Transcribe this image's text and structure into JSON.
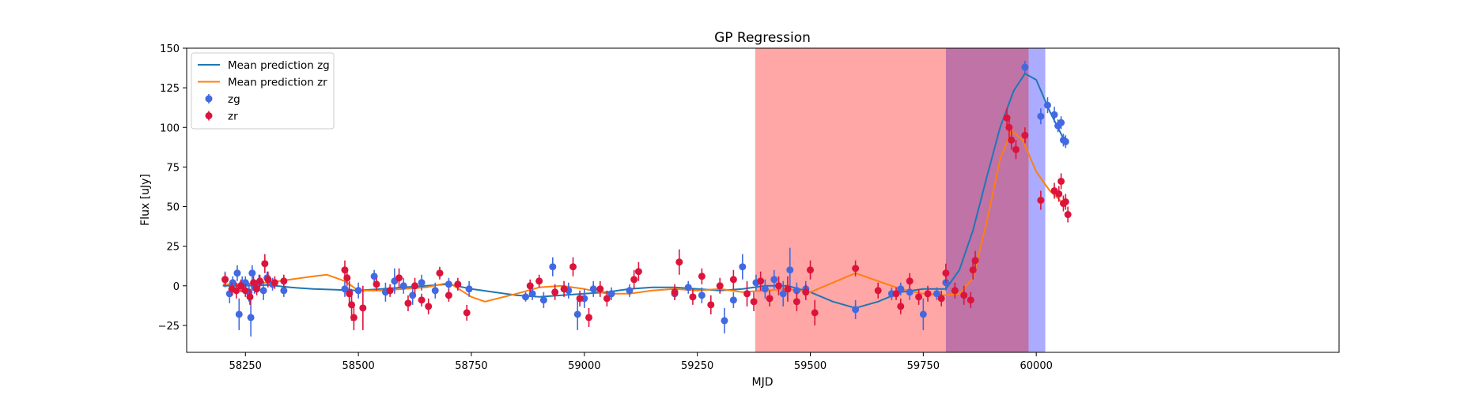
{
  "chart_data": {
    "type": "scatter",
    "title": "GP Regression",
    "xlabel": "MJD",
    "ylabel": "Flux [uJy]",
    "xlim": [
      58120,
      60670
    ],
    "ylim": [
      -42,
      150
    ],
    "xticks": [
      58250,
      58500,
      58750,
      59000,
      59250,
      59500,
      59750,
      60000
    ],
    "yticks": [
      -25,
      0,
      25,
      50,
      75,
      100,
      125,
      150
    ],
    "legend_placement": "upper-left",
    "shaded_regions": [
      {
        "x": [
          59378,
          59800
        ],
        "color": "#ff0000",
        "opacity": 0.35
      },
      {
        "x": [
          59800,
          59983
        ],
        "color": "#8b005e",
        "opacity": 0.55
      },
      {
        "x": [
          59983,
          60020
        ],
        "color": "#0000ff",
        "opacity": 0.33
      }
    ],
    "lines": [
      {
        "name": "Mean prediction zg",
        "legend": "Mean prediction zg",
        "color": "#1f77b4",
        "x": [
          58200,
          58250,
          58300,
          58350,
          58400,
          58450,
          58500,
          58550,
          58600,
          58650,
          58700,
          58750,
          58800,
          58850,
          58900,
          58950,
          59000,
          59050,
          59100,
          59150,
          59200,
          59250,
          59300,
          59350,
          59400,
          59450,
          59500,
          59550,
          59600,
          59650,
          59700,
          59750,
          59800,
          59830,
          59860,
          59890,
          59920,
          59950,
          59975,
          60000,
          60030,
          60060
        ],
        "y": [
          0,
          0,
          0.5,
          -1,
          -2,
          -2.5,
          -3,
          -2,
          -1,
          0,
          1,
          -2,
          -4,
          -6,
          -7,
          -6,
          -5,
          -4,
          -2,
          -1,
          -1,
          -2,
          -3,
          -2,
          0,
          0,
          -4,
          -10,
          -14,
          -10,
          -4,
          -2,
          -2,
          10,
          35,
          68,
          100,
          123,
          134,
          130,
          110,
          93
        ]
      },
      {
        "name": "Mean prediction zr",
        "legend": "Mean prediction zr",
        "color": "#ff7f0e",
        "x": [
          58200,
          58250,
          58300,
          58350,
          58400,
          58430,
          58470,
          58500,
          58550,
          58600,
          58650,
          58700,
          58750,
          58780,
          58850,
          58900,
          58950,
          59000,
          59050,
          59100,
          59150,
          59200,
          59250,
          59300,
          59350,
          59400,
          59450,
          59500,
          59550,
          59600,
          59650,
          59700,
          59750,
          59800,
          59830,
          59860,
          59890,
          59920,
          59945,
          59970,
          60000,
          60030,
          60060
        ],
        "y": [
          1,
          1,
          2,
          4,
          6,
          7,
          3,
          -3,
          -3,
          -2,
          -1,
          2,
          -7,
          -10,
          -5,
          -1,
          0,
          -2,
          -5,
          -5,
          -3,
          -2,
          -3,
          -2,
          -4,
          -3,
          -2,
          -4,
          2,
          8,
          3,
          -2,
          -5,
          -6,
          -5,
          5,
          40,
          80,
          98,
          92,
          72,
          60,
          52
        ]
      }
    ],
    "series": [
      {
        "name": "zg",
        "legend": "zg",
        "color": "#4169e1",
        "points": [
          [
            58205,
            4,
            5
          ],
          [
            58215,
            -5,
            6
          ],
          [
            58222,
            2,
            4
          ],
          [
            58232,
            8,
            5
          ],
          [
            58236,
            -18,
            10
          ],
          [
            58243,
            1,
            5
          ],
          [
            58250,
            2,
            4
          ],
          [
            58258,
            -4,
            6
          ],
          [
            58262,
            -20,
            12
          ],
          [
            58265,
            8,
            5
          ],
          [
            58270,
            -1,
            4
          ],
          [
            58280,
            2,
            5
          ],
          [
            58290,
            -3,
            6
          ],
          [
            58298,
            5,
            4
          ],
          [
            58310,
            1,
            4
          ],
          [
            58335,
            -3,
            4
          ],
          [
            58470,
            -2,
            5
          ],
          [
            58480,
            -4,
            6
          ],
          [
            58500,
            -3,
            5
          ],
          [
            58535,
            6,
            4
          ],
          [
            58560,
            -4,
            6
          ],
          [
            58580,
            3,
            8
          ],
          [
            58600,
            0,
            5
          ],
          [
            58620,
            -6,
            6
          ],
          [
            58640,
            2,
            5
          ],
          [
            58670,
            -3,
            5
          ],
          [
            58700,
            1,
            4
          ],
          [
            58745,
            -2,
            5
          ],
          [
            58870,
            -7,
            3
          ],
          [
            58885,
            -5,
            4
          ],
          [
            58910,
            -9,
            5
          ],
          [
            58930,
            12,
            6
          ],
          [
            58965,
            -3,
            5
          ],
          [
            58985,
            -18,
            10
          ],
          [
            59000,
            -8,
            6
          ],
          [
            59020,
            -2,
            5
          ],
          [
            59060,
            -5,
            4
          ],
          [
            59100,
            -3,
            4
          ],
          [
            59200,
            -5,
            4
          ],
          [
            59230,
            -1,
            4
          ],
          [
            59260,
            -6,
            5
          ],
          [
            59310,
            -22,
            8
          ],
          [
            59330,
            -9,
            5
          ],
          [
            59350,
            12,
            8
          ],
          [
            59380,
            2,
            5
          ],
          [
            59400,
            -2,
            6
          ],
          [
            59420,
            4,
            6
          ],
          [
            59440,
            -5,
            8
          ],
          [
            59455,
            10,
            14
          ],
          [
            59470,
            -3,
            5
          ],
          [
            59490,
            -2,
            5
          ],
          [
            59600,
            -15,
            6
          ],
          [
            59680,
            -5,
            4
          ],
          [
            59700,
            -2,
            4
          ],
          [
            59720,
            -4,
            5
          ],
          [
            59750,
            -18,
            10
          ],
          [
            59780,
            -5,
            4
          ],
          [
            59800,
            2,
            5
          ],
          [
            59975,
            138,
            4
          ],
          [
            60010,
            107,
            5
          ],
          [
            60025,
            114,
            5
          ],
          [
            60040,
            108,
            5
          ],
          [
            60048,
            101,
            4
          ],
          [
            60055,
            103,
            4
          ],
          [
            60060,
            92,
            4
          ],
          [
            60065,
            91,
            4
          ]
        ]
      },
      {
        "name": "zr",
        "legend": "zr",
        "color": "#dc143c",
        "points": [
          [
            58205,
            4,
            4
          ],
          [
            58220,
            -2,
            4
          ],
          [
            58230,
            -3,
            5
          ],
          [
            58240,
            0,
            4
          ],
          [
            58250,
            -3,
            4
          ],
          [
            58260,
            -7,
            5
          ],
          [
            58268,
            2,
            4
          ],
          [
            58275,
            -2,
            4
          ],
          [
            58282,
            3,
            4
          ],
          [
            58293,
            14,
            6
          ],
          [
            58300,
            4,
            5
          ],
          [
            58315,
            2,
            4
          ],
          [
            58335,
            3,
            4
          ],
          [
            58470,
            10,
            6
          ],
          [
            58475,
            5,
            5
          ],
          [
            58480,
            -5,
            8
          ],
          [
            58485,
            -12,
            10
          ],
          [
            58490,
            -20,
            8
          ],
          [
            58510,
            -14,
            14
          ],
          [
            58540,
            1,
            4
          ],
          [
            58570,
            -3,
            4
          ],
          [
            58590,
            5,
            6
          ],
          [
            58610,
            -11,
            5
          ],
          [
            58625,
            0,
            5
          ],
          [
            58640,
            -9,
            4
          ],
          [
            58655,
            -13,
            5
          ],
          [
            58680,
            8,
            4
          ],
          [
            58700,
            -6,
            4
          ],
          [
            58720,
            1,
            4
          ],
          [
            58740,
            -17,
            5
          ],
          [
            58880,
            0,
            4
          ],
          [
            58900,
            3,
            4
          ],
          [
            58935,
            -4,
            5
          ],
          [
            58955,
            -2,
            5
          ],
          [
            58975,
            12,
            6
          ],
          [
            58990,
            -8,
            5
          ],
          [
            59010,
            -20,
            6
          ],
          [
            59035,
            -2,
            5
          ],
          [
            59050,
            -8,
            5
          ],
          [
            59110,
            4,
            6
          ],
          [
            59120,
            9,
            6
          ],
          [
            59200,
            -4,
            5
          ],
          [
            59210,
            15,
            8
          ],
          [
            59240,
            -7,
            5
          ],
          [
            59260,
            6,
            5
          ],
          [
            59280,
            -12,
            6
          ],
          [
            59300,
            0,
            5
          ],
          [
            59330,
            4,
            6
          ],
          [
            59360,
            -5,
            8
          ],
          [
            59375,
            -10,
            6
          ],
          [
            59390,
            3,
            6
          ],
          [
            59410,
            -8,
            5
          ],
          [
            59430,
            0,
            6
          ],
          [
            59450,
            -2,
            8
          ],
          [
            59470,
            -10,
            6
          ],
          [
            59490,
            -4,
            5
          ],
          [
            59500,
            10,
            6
          ],
          [
            59510,
            -17,
            8
          ],
          [
            59600,
            11,
            5
          ],
          [
            59650,
            -3,
            5
          ],
          [
            59690,
            -5,
            4
          ],
          [
            59700,
            -13,
            5
          ],
          [
            59720,
            3,
            5
          ],
          [
            59740,
            -7,
            5
          ],
          [
            59760,
            -5,
            5
          ],
          [
            59790,
            -8,
            5
          ],
          [
            59800,
            8,
            6
          ],
          [
            59820,
            -3,
            5
          ],
          [
            59840,
            -6,
            6
          ],
          [
            59855,
            -9,
            5
          ],
          [
            59860,
            10,
            6
          ],
          [
            59865,
            16,
            6
          ],
          [
            59935,
            106,
            6
          ],
          [
            59940,
            100,
            7
          ],
          [
            59945,
            92,
            6
          ],
          [
            59955,
            86,
            6
          ],
          [
            59975,
            95,
            5
          ],
          [
            60010,
            54,
            6
          ],
          [
            60040,
            60,
            5
          ],
          [
            60050,
            58,
            5
          ],
          [
            60055,
            66,
            5
          ],
          [
            60060,
            52,
            5
          ],
          [
            60065,
            53,
            5
          ],
          [
            60070,
            45,
            5
          ]
        ]
      }
    ]
  }
}
